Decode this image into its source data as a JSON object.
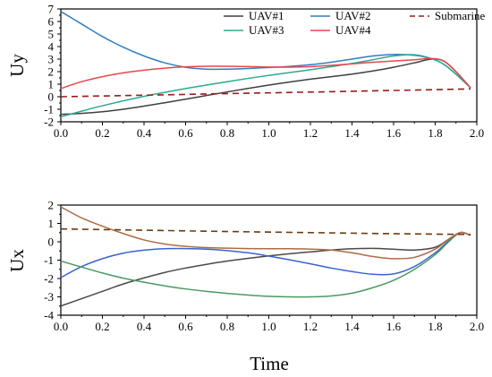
{
  "chart_data": [
    {
      "type": "line",
      "ylabel": "Uy",
      "xlabel": "",
      "xlim": [
        0,
        2
      ],
      "ylim": [
        -2,
        7
      ],
      "xticks": [
        "0.0",
        "0.2",
        "0.4",
        "0.6",
        "0.8",
        "1.0",
        "1.2",
        "1.4",
        "1.6",
        "1.8",
        "2.0"
      ],
      "yticks": [
        "-2",
        "-1",
        "0",
        "1",
        "2",
        "3",
        "4",
        "5",
        "6",
        "7"
      ],
      "legend_position": "top-right",
      "series": [
        {
          "name": "UAV#1",
          "color": "#404040",
          "dash": "solid",
          "x": [
            0.0,
            0.1,
            0.2,
            0.3,
            0.4,
            0.5,
            0.6,
            0.7,
            0.8,
            0.9,
            1.0,
            1.1,
            1.2,
            1.3,
            1.4,
            1.5,
            1.6,
            1.7,
            1.78,
            1.84,
            1.9,
            1.97
          ],
          "y": [
            -1.4,
            -1.33,
            -1.2,
            -1.0,
            -0.75,
            -0.48,
            -0.2,
            0.1,
            0.38,
            0.66,
            0.93,
            1.17,
            1.4,
            1.6,
            1.8,
            2.05,
            2.35,
            2.7,
            3.0,
            2.85,
            2.0,
            0.7
          ]
        },
        {
          "name": "UAV#2",
          "color": "#2f7ebf",
          "dash": "solid",
          "x": [
            0.0,
            0.1,
            0.2,
            0.3,
            0.4,
            0.5,
            0.6,
            0.7,
            0.8,
            0.9,
            1.0,
            1.1,
            1.2,
            1.3,
            1.4,
            1.5,
            1.6,
            1.7,
            1.78,
            1.84,
            1.9,
            1.97
          ],
          "y": [
            6.8,
            5.8,
            4.8,
            3.95,
            3.25,
            2.7,
            2.35,
            2.2,
            2.2,
            2.25,
            2.33,
            2.42,
            2.55,
            2.75,
            3.0,
            3.25,
            3.37,
            3.3,
            3.05,
            2.6,
            1.8,
            0.7
          ]
        },
        {
          "name": "UAV#3",
          "color": "#2bab8c",
          "dash": "solid",
          "x": [
            0.0,
            0.1,
            0.2,
            0.3,
            0.4,
            0.5,
            0.6,
            0.7,
            0.8,
            0.9,
            1.0,
            1.1,
            1.2,
            1.3,
            1.4,
            1.5,
            1.6,
            1.7,
            1.78,
            1.84,
            1.9,
            1.97
          ],
          "y": [
            -1.6,
            -1.15,
            -0.72,
            -0.33,
            0.03,
            0.35,
            0.65,
            0.93,
            1.2,
            1.46,
            1.7,
            1.93,
            2.15,
            2.4,
            2.65,
            2.95,
            3.25,
            3.35,
            3.05,
            2.6,
            1.8,
            0.7
          ]
        },
        {
          "name": "UAV#4",
          "color": "#e8474c",
          "dash": "solid",
          "x": [
            0.0,
            0.1,
            0.2,
            0.3,
            0.4,
            0.5,
            0.6,
            0.7,
            0.8,
            0.9,
            1.0,
            1.1,
            1.2,
            1.3,
            1.4,
            1.5,
            1.6,
            1.7,
            1.78,
            1.84,
            1.9,
            1.97
          ],
          "y": [
            0.65,
            1.2,
            1.6,
            1.9,
            2.12,
            2.28,
            2.38,
            2.43,
            2.43,
            2.4,
            2.37,
            2.36,
            2.4,
            2.5,
            2.62,
            2.75,
            2.85,
            2.95,
            3.05,
            2.85,
            2.0,
            0.7
          ]
        },
        {
          "name": "Submarine",
          "color": "#9b1b1b",
          "dash": "dashed",
          "x": [
            0.0,
            0.4,
            0.8,
            1.2,
            1.6,
            1.97
          ],
          "y": [
            0.0,
            0.12,
            0.25,
            0.37,
            0.5,
            0.62
          ]
        }
      ]
    },
    {
      "type": "line",
      "ylabel": "Ux",
      "xlabel": "Time",
      "xlim": [
        0,
        2
      ],
      "ylim": [
        -4,
        2
      ],
      "xticks": [
        "0.0",
        "0.2",
        "0.4",
        "0.6",
        "0.8",
        "1.0",
        "1.2",
        "1.4",
        "1.6",
        "1.8",
        "2.0"
      ],
      "yticks": [
        "-4",
        "-3",
        "-2",
        "-1",
        "0",
        "1",
        "2"
      ],
      "series": [
        {
          "color": "#4a4a4a",
          "dash": "solid",
          "x": [
            0.0,
            0.1,
            0.2,
            0.3,
            0.4,
            0.5,
            0.6,
            0.7,
            0.8,
            0.9,
            1.0,
            1.1,
            1.2,
            1.3,
            1.4,
            1.5,
            1.6,
            1.7,
            1.8,
            1.86,
            1.92,
            1.97
          ],
          "y": [
            -3.5,
            -3.1,
            -2.7,
            -2.3,
            -1.97,
            -1.67,
            -1.43,
            -1.23,
            -1.05,
            -0.9,
            -0.77,
            -0.65,
            -0.55,
            -0.45,
            -0.38,
            -0.36,
            -0.4,
            -0.45,
            -0.3,
            0.1,
            0.5,
            0.35
          ]
        },
        {
          "color": "#3a63d0",
          "dash": "solid",
          "x": [
            0.0,
            0.1,
            0.2,
            0.3,
            0.4,
            0.5,
            0.6,
            0.7,
            0.8,
            0.9,
            1.0,
            1.1,
            1.2,
            1.3,
            1.4,
            1.5,
            1.6,
            1.7,
            1.8,
            1.86,
            1.92,
            1.97
          ],
          "y": [
            -1.95,
            -1.35,
            -0.92,
            -0.62,
            -0.46,
            -0.38,
            -0.37,
            -0.4,
            -0.48,
            -0.6,
            -0.78,
            -0.98,
            -1.2,
            -1.43,
            -1.62,
            -1.77,
            -1.75,
            -1.35,
            -0.6,
            0.0,
            0.5,
            0.35
          ]
        },
        {
          "color": "#4a9a62",
          "dash": "solid",
          "x": [
            0.0,
            0.1,
            0.2,
            0.3,
            0.4,
            0.5,
            0.6,
            0.7,
            0.8,
            0.9,
            1.0,
            1.1,
            1.2,
            1.3,
            1.4,
            1.5,
            1.6,
            1.7,
            1.8,
            1.86,
            1.92,
            1.97
          ],
          "y": [
            -1.05,
            -1.38,
            -1.7,
            -1.98,
            -2.2,
            -2.4,
            -2.57,
            -2.7,
            -2.81,
            -2.9,
            -2.97,
            -3.0,
            -3.0,
            -2.95,
            -2.8,
            -2.5,
            -2.1,
            -1.5,
            -0.7,
            -0.05,
            0.5,
            0.35
          ]
        },
        {
          "color": "#b06a45",
          "dash": "solid",
          "x": [
            0.0,
            0.1,
            0.2,
            0.3,
            0.4,
            0.5,
            0.6,
            0.7,
            0.8,
            0.9,
            1.0,
            1.1,
            1.2,
            1.3,
            1.4,
            1.5,
            1.6,
            1.7,
            1.8,
            1.86,
            1.92,
            1.97
          ],
          "y": [
            1.9,
            1.3,
            0.85,
            0.45,
            0.1,
            -0.12,
            -0.25,
            -0.32,
            -0.35,
            -0.37,
            -0.38,
            -0.38,
            -0.4,
            -0.45,
            -0.6,
            -0.8,
            -0.92,
            -0.85,
            -0.4,
            0.1,
            0.5,
            0.35
          ]
        },
        {
          "color": "#6b3a10",
          "dash": "dashed",
          "x": [
            0.0,
            0.4,
            0.8,
            1.2,
            1.6,
            1.97
          ],
          "y": [
            0.7,
            0.63,
            0.56,
            0.5,
            0.44,
            0.4
          ]
        }
      ]
    }
  ]
}
